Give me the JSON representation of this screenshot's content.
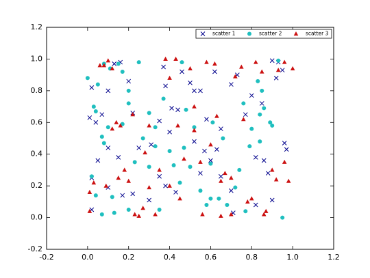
{
  "chart_data": {
    "type": "scatter",
    "xlim": [
      -0.2,
      1.2
    ],
    "ylim": [
      -0.2,
      1.2
    ],
    "xticks": [
      -0.2,
      {
        "value": 0,
        "label": "0.0"
      },
      0.2,
      0.4,
      0.6,
      0.8,
      {
        "value": 1,
        "label": "1.0"
      },
      1.2
    ],
    "yticks": [
      -0.2,
      {
        "value": 0,
        "label": "0.0"
      },
      0.2,
      0.4,
      0.6,
      0.8,
      {
        "value": 1,
        "label": "1.0"
      },
      1.2
    ],
    "legend": "upper right",
    "series": [
      {
        "name": "scatter 1",
        "color": "#00008b",
        "marker": "x",
        "x": [
          0.02,
          0.01,
          0.04,
          0.07,
          0.1,
          0.13,
          0.16,
          0.2,
          0.22,
          0.35,
          0.37,
          0.38,
          0.41,
          0.46,
          0.5,
          0.52,
          0.55,
          0.58,
          0.62,
          0.65,
          0.7,
          0.73,
          0.77,
          0.8,
          0.85,
          0.9,
          0.93,
          0.95,
          0.97,
          0.96,
          0.88,
          0.9,
          0.82,
          0.71,
          0.7,
          0.65,
          0.6,
          0.57,
          0.55,
          0.43,
          0.38,
          0.35,
          0.22,
          0.17,
          0.1,
          0.05,
          0.02,
          0.1,
          0.25,
          0.31,
          0.3,
          0.02,
          0.4,
          0.44,
          0.52,
          0.63,
          0.82,
          0.86,
          0.92,
          0.15
        ],
        "values": [
          0.82,
          0.63,
          0.6,
          0.65,
          0.8,
          0.97,
          0.98,
          0.86,
          0.66,
          0.61,
          0.95,
          0.83,
          0.69,
          0.92,
          0.85,
          0.8,
          0.8,
          0.62,
          0.92,
          0.56,
          0.84,
          0.9,
          0.65,
          0.77,
          0.72,
          0.99,
          0.98,
          0.93,
          0.43,
          0.47,
          0.28,
          0.11,
          0.08,
          0.03,
          0.17,
          0.26,
          0.36,
          0.42,
          0.28,
          0.16,
          0.2,
          0.26,
          0.15,
          0.14,
          0.19,
          0.36,
          0.05,
          0.44,
          0.44,
          0.46,
          0.11,
          0.25,
          0.54,
          0.68,
          0.48,
          0.43,
          0.38,
          0.36,
          0.88,
          0.38
        ]
      },
      {
        "name": "scatter 2",
        "color": "#1fbfbf",
        "marker": "o",
        "x": [
          0.0,
          0.03,
          0.04,
          0.07,
          0.08,
          0.1,
          0.11,
          0.15,
          0.17,
          0.2,
          0.2,
          0.25,
          0.23,
          0.3,
          0.33,
          0.37,
          0.4,
          0.42,
          0.45,
          0.46,
          0.48,
          0.5,
          0.52,
          0.55,
          0.58,
          0.6,
          0.61,
          0.64,
          0.68,
          0.72,
          0.74,
          0.76,
          0.79,
          0.8,
          0.83,
          0.84,
          0.85,
          0.86,
          0.89,
          0.9,
          0.93,
          0.95,
          0.84,
          0.07,
          0.04,
          0.02,
          0.12,
          0.13,
          0.17,
          0.33,
          0.35,
          0.27,
          0.2,
          0.47,
          0.66,
          0.3,
          0.77,
          0.08,
          0.05,
          0.6
        ],
        "values": [
          0.88,
          0.7,
          0.67,
          0.51,
          0.47,
          0.57,
          0.94,
          0.97,
          0.92,
          0.72,
          0.8,
          0.98,
          0.35,
          0.66,
          0.57,
          0.75,
          0.42,
          0.33,
          0.22,
          0.98,
          0.68,
          0.32,
          0.57,
          0.17,
          0.08,
          0.12,
          0.6,
          0.12,
          0.08,
          0.19,
          0.3,
          0.72,
          0.45,
          0.56,
          0.86,
          0.48,
          0.8,
          0.69,
          0.6,
          0.58,
          0.99,
          0.0,
          0.65,
          0.02,
          0.14,
          0.26,
          0.13,
          0.03,
          0.59,
          0.45,
          0.05,
          0.5,
          0.05,
          0.44,
          0.5,
          0.32,
          0.04,
          0.97,
          0.84,
          0.34
        ]
      },
      {
        "name": "scatter 3",
        "color": "#cc1111",
        "marker": "^",
        "x": [
          0.01,
          0.01,
          0.06,
          0.08,
          0.1,
          0.12,
          0.14,
          0.16,
          0.18,
          0.2,
          0.22,
          0.23,
          0.25,
          0.27,
          0.3,
          0.33,
          0.38,
          0.4,
          0.43,
          0.45,
          0.47,
          0.5,
          0.52,
          0.55,
          0.56,
          0.58,
          0.6,
          0.62,
          0.65,
          0.67,
          0.7,
          0.72,
          0.75,
          0.78,
          0.8,
          0.82,
          0.85,
          0.87,
          0.9,
          0.93,
          0.96,
          1.0,
          0.96,
          0.98,
          0.92,
          0.76,
          0.63,
          0.52,
          0.28,
          0.35,
          0.12,
          0.03,
          0.09,
          0.15,
          0.7,
          0.86,
          0.44,
          0.3,
          0.65,
          0.4
        ],
        "values": [
          0.16,
          0.04,
          0.96,
          0.96,
          0.99,
          0.94,
          0.6,
          0.58,
          0.3,
          0.23,
          0.65,
          0.02,
          0.01,
          0.06,
          0.58,
          0.02,
          1.0,
          0.88,
          1.0,
          0.12,
          0.37,
          0.94,
          0.55,
          0.35,
          0.02,
          0.98,
          0.46,
          0.97,
          0.23,
          0.28,
          0.25,
          0.89,
          0.95,
          0.1,
          0.12,
          0.98,
          0.92,
          0.04,
          0.3,
          0.93,
          0.98,
          0.94,
          0.35,
          0.23,
          0.24,
          0.62,
          0.64,
          0.7,
          0.41,
          0.3,
          0.56,
          0.22,
          0.2,
          0.25,
          0.02,
          0.02,
          0.58,
          0.19,
          0.01,
          0.2
        ]
      }
    ]
  }
}
